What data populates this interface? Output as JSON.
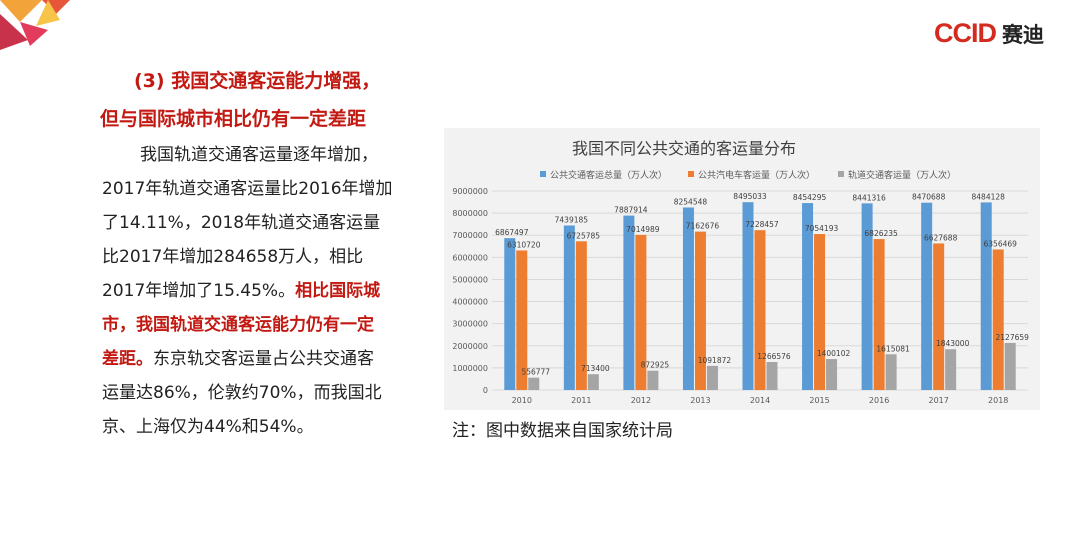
{
  "logo": {
    "brand": "CCID",
    "name_cn": "赛迪"
  },
  "heading": {
    "line1": "(3) 我国交通客运能力增强，",
    "line2": "但与国际城市相比仍有一定差距"
  },
  "body": {
    "line1": "我国轨道交通客运量逐年增加，",
    "line2": "2017年轨道交通客运量比2016年增加",
    "line3": "了14.11%，2018年轨道交通客运量",
    "line4": "比2017年增加284658万人，相比",
    "line5_normal": "2017年增加了15.45%。",
    "line5_em": "相比国际城",
    "line6_em": "市，我国轨道交通客运能力仍有一定",
    "line7_em": "差距。",
    "line7_normal": "东京轨交客运量占公共交通客",
    "line8": "运量达86%，伦敦约70%，而我国北",
    "line9": "京、上海仅为44%和54%。"
  },
  "note": "注：图中数据来自国家统计局",
  "chart_data": {
    "type": "bar",
    "title": "我国不同公共交通的客运量分布",
    "categories": [
      "2010",
      "2011",
      "2012",
      "2013",
      "2014",
      "2015",
      "2016",
      "2017",
      "2018"
    ],
    "series": [
      {
        "name": "公共交通客运总量（万人次）",
        "color": "#5b9bd5",
        "values": [
          6867497,
          7439185,
          7887914,
          8254548,
          8495033,
          8454295,
          8441316,
          8470688,
          8484128
        ]
      },
      {
        "name": "公共汽电车客运量（万人次）",
        "color": "#ed7d31",
        "values": [
          6310720,
          6725785,
          7014989,
          7162676,
          7228457,
          7054193,
          6826235,
          6627688,
          6356469
        ]
      },
      {
        "name": "轨道交通客运量（万人次）",
        "color": "#a5a5a5",
        "values": [
          556777,
          713400,
          872925,
          1091872,
          1266576,
          1400102,
          1615081,
          1843000,
          2127659
        ]
      }
    ],
    "ylim": [
      0,
      9000000
    ],
    "y_ticks": [
      0,
      1000000,
      2000000,
      3000000,
      4000000,
      5000000,
      6000000,
      7000000,
      8000000,
      9000000
    ],
    "grid": true,
    "legend": "top"
  }
}
